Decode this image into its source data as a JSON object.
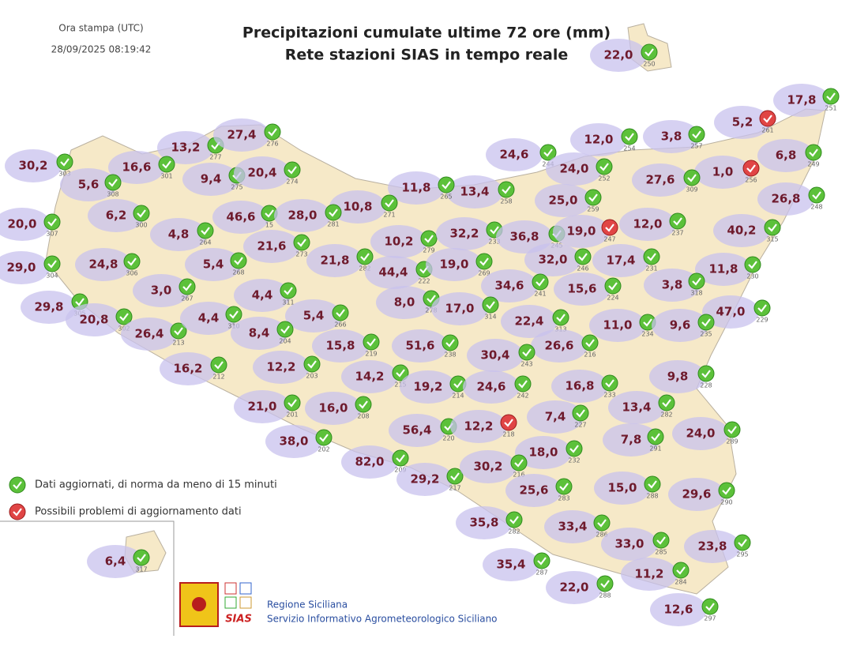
{
  "header": {
    "print_label": "Ora stampa (UTC)",
    "print_time": "28/09/2025 08:19:42",
    "title": "Precipitazioni cumulate ultime 72 ore (mm)",
    "subtitle": "Rete stazioni SIAS in tempo reale"
  },
  "legend": [
    {
      "text": "Dati aggiornati, di norma da meno di 15 minuti",
      "icon": "green"
    },
    {
      "text": "Possibili problemi di aggiornamento dati",
      "icon": "red"
    }
  ],
  "footer": {
    "logo": "SIAS",
    "org": "Regione Siciliana",
    "service": "Servizio Informativo Agrometeorologico Siciliano"
  },
  "stations": [
    {
      "value": "22,0",
      "id": "250",
      "icon": "green"
    },
    {
      "value": "17,8",
      "id": "251",
      "icon": "green"
    },
    {
      "value": "5,2",
      "id": "261",
      "icon": "red"
    },
    {
      "value": "12,0",
      "id": "254",
      "icon": "green"
    },
    {
      "value": "3,8",
      "id": "257",
      "icon": "green"
    },
    {
      "value": "6,8",
      "id": "249",
      "icon": "green"
    },
    {
      "value": "1,0",
      "id": "256",
      "icon": "red"
    },
    {
      "value": "24,6",
      "id": "244",
      "icon": "green"
    },
    {
      "value": "24,0",
      "id": "252",
      "icon": "green"
    },
    {
      "value": "27,6",
      "id": "309",
      "icon": "green"
    },
    {
      "value": "26,8",
      "id": "248",
      "icon": "green"
    },
    {
      "value": "25,0",
      "id": "259",
      "icon": "green"
    },
    {
      "value": "13,4",
      "id": "258",
      "icon": "green"
    },
    {
      "value": "11,8",
      "id": "265",
      "icon": "green"
    },
    {
      "value": "10,8",
      "id": "271",
      "icon": "green"
    },
    {
      "value": "30,2",
      "id": "303",
      "icon": "green"
    },
    {
      "value": "13,2",
      "id": "277",
      "icon": "green"
    },
    {
      "value": "27,4",
      "id": "276",
      "icon": "green"
    },
    {
      "value": "16,6",
      "id": "301",
      "icon": "green"
    },
    {
      "value": "5,6",
      "id": "308",
      "icon": "green"
    },
    {
      "value": "9,4",
      "id": "275",
      "icon": "green"
    },
    {
      "value": "20,4",
      "id": "274",
      "icon": "green"
    },
    {
      "value": "20,0",
      "id": "307",
      "icon": "green"
    },
    {
      "value": "6,2",
      "id": "300",
      "icon": "green"
    },
    {
      "value": "4,8",
      "id": "264",
      "icon": "green"
    },
    {
      "value": "46,6",
      "id": "15",
      "icon": "green"
    },
    {
      "value": "28,0",
      "id": "281",
      "icon": "green"
    },
    {
      "value": "21,6",
      "id": "273",
      "icon": "green"
    },
    {
      "value": "10,2",
      "id": "279",
      "icon": "green"
    },
    {
      "value": "32,2",
      "id": "233",
      "icon": "green"
    },
    {
      "value": "36,8",
      "id": "245",
      "icon": "green"
    },
    {
      "value": "19,0",
      "id": "247",
      "icon": "red"
    },
    {
      "value": "12,0",
      "id": "237",
      "icon": "green"
    },
    {
      "value": "40,2",
      "id": "315",
      "icon": "green"
    },
    {
      "value": "29,0",
      "id": "304",
      "icon": "green"
    },
    {
      "value": "24,8",
      "id": "306",
      "icon": "green"
    },
    {
      "value": "5,4",
      "id": "268",
      "icon": "green"
    },
    {
      "value": "21,8",
      "id": "282",
      "icon": "green"
    },
    {
      "value": "44,4",
      "id": "222",
      "icon": "green"
    },
    {
      "value": "19,0",
      "id": "269",
      "icon": "green"
    },
    {
      "value": "32,0",
      "id": "246",
      "icon": "green"
    },
    {
      "value": "17,4",
      "id": "231",
      "icon": "green"
    },
    {
      "value": "11,8",
      "id": "230",
      "icon": "green"
    },
    {
      "value": "3,0",
      "id": "267",
      "icon": "green"
    },
    {
      "value": "4,4",
      "id": "311",
      "icon": "green"
    },
    {
      "value": "34,6",
      "id": "241",
      "icon": "green"
    },
    {
      "value": "15,6",
      "id": "224",
      "icon": "green"
    },
    {
      "value": "3,8",
      "id": "318",
      "icon": "green"
    },
    {
      "value": "8,0",
      "id": "278",
      "icon": "green"
    },
    {
      "value": "17,0",
      "id": "314",
      "icon": "green"
    },
    {
      "value": "29,8",
      "id": "305",
      "icon": "green"
    },
    {
      "value": "20,8",
      "id": "302",
      "icon": "green"
    },
    {
      "value": "26,4",
      "id": "213",
      "icon": "green"
    },
    {
      "value": "4,4",
      "id": "310",
      "icon": "green"
    },
    {
      "value": "5,4",
      "id": "266",
      "icon": "green"
    },
    {
      "value": "47,0",
      "id": "229",
      "icon": "green"
    },
    {
      "value": "22,4",
      "id": "313",
      "icon": "green"
    },
    {
      "value": "11,0",
      "id": "234",
      "icon": "green"
    },
    {
      "value": "9,6",
      "id": "235",
      "icon": "green"
    },
    {
      "value": "8,4",
      "id": "204",
      "icon": "green"
    },
    {
      "value": "15,8",
      "id": "219",
      "icon": "green"
    },
    {
      "value": "51,6",
      "id": "238",
      "icon": "green"
    },
    {
      "value": "26,6",
      "id": "216",
      "icon": "green"
    },
    {
      "value": "30,4",
      "id": "243",
      "icon": "green"
    },
    {
      "value": "16,2",
      "id": "212",
      "icon": "green"
    },
    {
      "value": "12,2",
      "id": "203",
      "icon": "green"
    },
    {
      "value": "14,2",
      "id": "215",
      "icon": "green"
    },
    {
      "value": "19,2",
      "id": "214",
      "icon": "green"
    },
    {
      "value": "24,6",
      "id": "242",
      "icon": "green"
    },
    {
      "value": "16,8",
      "id": "233",
      "icon": "green"
    },
    {
      "value": "9,8",
      "id": "228",
      "icon": "green"
    },
    {
      "value": "13,4",
      "id": "282",
      "icon": "green"
    },
    {
      "value": "21,0",
      "id": "201",
      "icon": "green"
    },
    {
      "value": "16,0",
      "id": "208",
      "icon": "green"
    },
    {
      "value": "7,4",
      "id": "227",
      "icon": "green"
    },
    {
      "value": "56,4",
      "id": "220",
      "icon": "green"
    },
    {
      "value": "12,2",
      "id": "218",
      "icon": "red"
    },
    {
      "value": "24,0",
      "id": "289",
      "icon": "green"
    },
    {
      "value": "7,8",
      "id": "291",
      "icon": "green"
    },
    {
      "value": "38,0",
      "id": "202",
      "icon": "green"
    },
    {
      "value": "18,0",
      "id": "232",
      "icon": "green"
    },
    {
      "value": "82,0",
      "id": "209",
      "icon": "green"
    },
    {
      "value": "29,2",
      "id": "217",
      "icon": "green"
    },
    {
      "value": "30,2",
      "id": "216",
      "icon": "green"
    },
    {
      "value": "25,6",
      "id": "283",
      "icon": "green"
    },
    {
      "value": "15,0",
      "id": "288",
      "icon": "green"
    },
    {
      "value": "29,6",
      "id": "290",
      "icon": "green"
    },
    {
      "value": "35,8",
      "id": "282",
      "icon": "green"
    },
    {
      "value": "33,4",
      "id": "286",
      "icon": "green"
    },
    {
      "value": "33,0",
      "id": "285",
      "icon": "green"
    },
    {
      "value": "23,8",
      "id": "295",
      "icon": "green"
    },
    {
      "value": "35,4",
      "id": "287",
      "icon": "green"
    },
    {
      "value": "22,0",
      "id": "288",
      "icon": "green"
    },
    {
      "value": "11,2",
      "id": "284",
      "icon": "green"
    },
    {
      "value": "12,6",
      "id": "297",
      "icon": "green"
    },
    {
      "value": "6,4",
      "id": "317",
      "icon": "green"
    }
  ]
}
